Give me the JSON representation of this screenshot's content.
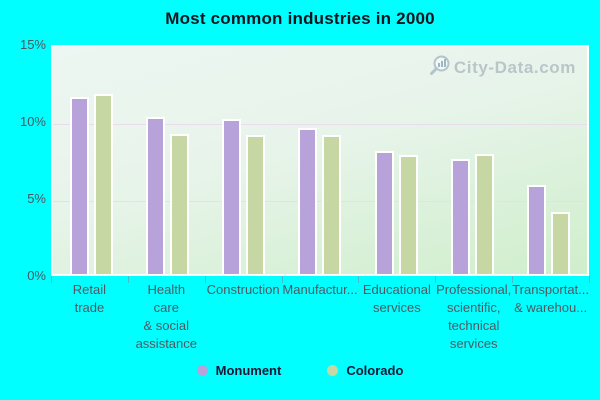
{
  "title": "Most common industries in 2000",
  "watermark": "City-Data.com",
  "colors": {
    "background": "#00ffff",
    "monument_bar": "#b7a3d9",
    "colorado_bar": "#c6d7a3",
    "bar_border": "#ffffff",
    "plot_top": "#edf6f2",
    "plot_bottom": "#cfeecb",
    "gridline": "#e9dded",
    "axis_text": "#4e565e",
    "legend_text": "#181835"
  },
  "y_axis": {
    "ticks": [
      {
        "label": "15%",
        "value": 15
      },
      {
        "label": "10%",
        "value": 10
      },
      {
        "label": "5%",
        "value": 5
      },
      {
        "label": "0%",
        "value": 0
      }
    ],
    "gridline_values": [
      10,
      5
    ]
  },
  "legend": {
    "items": [
      {
        "label": "Monument",
        "color": "#b7a3d9"
      },
      {
        "label": "Colorado",
        "color": "#c6d7a3"
      }
    ]
  },
  "chart_data": {
    "type": "bar",
    "title": "Most common industries in 2000",
    "categories": [
      "Retail trade",
      "Health care & social assistance",
      "Construction",
      "Manufactur...",
      "Educational services",
      "Professional, scientific, technical services",
      "Transportat... & warehou..."
    ],
    "category_display_lines": [
      [
        "Retail",
        "trade"
      ],
      [
        "Health",
        "care",
        "& social",
        "assistance"
      ],
      [
        "Construction"
      ],
      [
        "Manufactur..."
      ],
      [
        "Educational",
        "services"
      ],
      [
        "Professional,",
        "scientific,",
        "technical",
        "services"
      ],
      [
        "Transportat...",
        "& warehou..."
      ]
    ],
    "series": [
      {
        "name": "Monument",
        "color": "#b7a3d9",
        "values": [
          11.5,
          10.2,
          10.1,
          9.5,
          8.0,
          7.5,
          5.8
        ]
      },
      {
        "name": "Colorado",
        "color": "#c6d7a3",
        "values": [
          11.7,
          9.1,
          9.0,
          9.0,
          7.7,
          7.8,
          4.0
        ]
      }
    ],
    "ylabel": "",
    "xlabel": "",
    "ylim": [
      0,
      15
    ],
    "grid": true,
    "legend_position": "bottom"
  }
}
